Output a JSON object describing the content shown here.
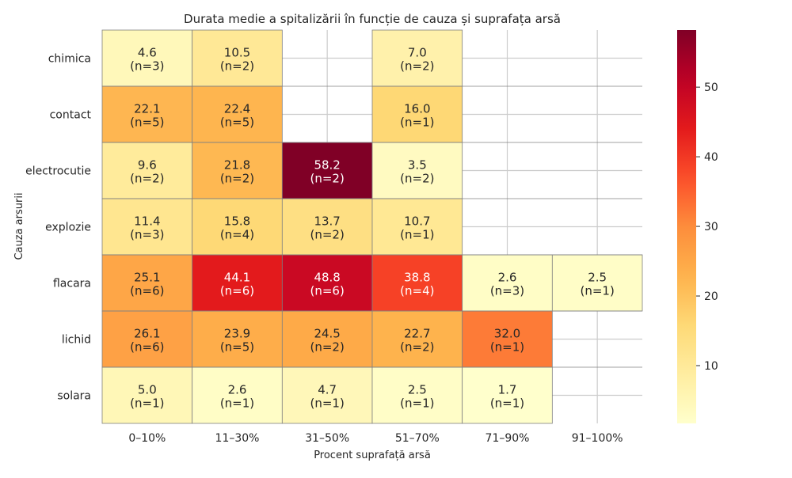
{
  "chart_data": {
    "type": "heatmap",
    "title": "Durata medie a spitalizării în funcție de cauza și suprafața arsă",
    "xlabel": "Procent suprafață arsă",
    "ylabel": "Cauza arsurii",
    "columns": [
      "0–10%",
      "11–30%",
      "31–50%",
      "51–70%",
      "71–90%",
      "91–100%"
    ],
    "rows": [
      "chimica",
      "contact",
      "electrocutie",
      "explozie",
      "flacara",
      "lichid",
      "solara"
    ],
    "values": [
      [
        4.6,
        10.5,
        null,
        7.0,
        null,
        null
      ],
      [
        22.1,
        22.4,
        null,
        16.0,
        null,
        null
      ],
      [
        9.6,
        21.8,
        58.2,
        3.5,
        null,
        null
      ],
      [
        11.4,
        15.8,
        13.7,
        10.7,
        null,
        null
      ],
      [
        25.1,
        44.1,
        48.8,
        38.8,
        2.6,
        2.5
      ],
      [
        26.1,
        23.9,
        24.5,
        22.7,
        32.0,
        null
      ],
      [
        5.0,
        2.6,
        4.7,
        2.5,
        1.7,
        null
      ]
    ],
    "counts": [
      [
        3,
        2,
        null,
        2,
        null,
        null
      ],
      [
        5,
        5,
        null,
        1,
        null,
        null
      ],
      [
        2,
        2,
        2,
        2,
        null,
        null
      ],
      [
        3,
        4,
        2,
        1,
        null,
        null
      ],
      [
        6,
        6,
        6,
        4,
        3,
        1
      ],
      [
        6,
        5,
        2,
        2,
        1,
        null
      ],
      [
        1,
        1,
        1,
        1,
        1,
        null
      ]
    ],
    "colorbar": {
      "colormap": "YlOrRd",
      "range": [
        1.7,
        58.2
      ],
      "ticks": [
        10,
        20,
        30,
        40,
        50
      ]
    },
    "grid": true
  }
}
